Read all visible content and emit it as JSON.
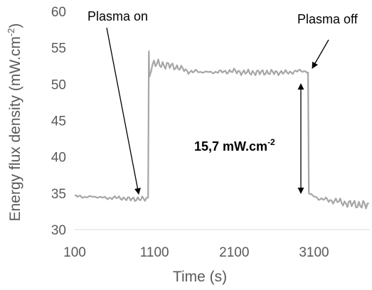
{
  "chart_data": {
    "type": "line",
    "title": "",
    "xlabel": "Time (s)",
    "ylabel": "Energy flux density (mW.cm",
    "ylabel_superscript": "-2",
    "ylabel_close": ")",
    "xlim": [
      100,
      3800
    ],
    "ylim": [
      30,
      60
    ],
    "x_ticks": [
      100,
      1100,
      2100,
      3100
    ],
    "y_ticks": [
      30,
      35,
      40,
      45,
      50,
      55,
      60
    ],
    "grid": false,
    "series_color": "#a6a6a6",
    "segments": [
      {
        "x_start": 100,
        "x_end": 1000,
        "mean": 34.4,
        "amp": 0.25
      },
      {
        "x_start": 1040,
        "x_end": 1700,
        "mean": 52.2,
        "amp": 0.45
      },
      {
        "x_start": 1700,
        "x_end": 3020,
        "mean": 51.7,
        "amp": 0.3
      },
      {
        "x_start": 3050,
        "x_end": 3800,
        "mean": 33.8,
        "amp": 0.45
      }
    ],
    "series": [
      {
        "x": [
          100,
          200,
          300,
          400,
          500,
          600,
          700,
          800,
          900,
          1000,
          1020,
          1030,
          1040,
          1060,
          1100,
          1200,
          1300,
          1400,
          1500,
          1600,
          1700,
          1800,
          1900,
          2000,
          2100,
          2200,
          2300,
          2400,
          2500,
          2600,
          2700,
          2800,
          2900,
          3000,
          3020,
          3030,
          3050,
          3100,
          3200,
          3300,
          3400,
          3500,
          3600,
          3700,
          3800
        ],
        "values": [
          34.6,
          34.5,
          34.5,
          34.5,
          34.3,
          34.4,
          34.3,
          34.2,
          34.2,
          34.2,
          34.4,
          54.5,
          51.0,
          52.6,
          52.8,
          52.7,
          52.5,
          52.3,
          51.8,
          51.7,
          51.7,
          51.6,
          51.7,
          51.7,
          51.8,
          51.6,
          51.6,
          51.6,
          51.6,
          51.6,
          51.6,
          51.6,
          51.8,
          51.8,
          51.6,
          35.0,
          34.8,
          34.5,
          34.2,
          34.0,
          33.9,
          33.6,
          33.5,
          33.4,
          33.3
        ]
      }
    ],
    "annotations": [
      {
        "text": "Plasma on"
      },
      {
        "text": "Plasma off"
      },
      {
        "text": "15,7 mW.cm",
        "sup": "-2"
      }
    ]
  }
}
